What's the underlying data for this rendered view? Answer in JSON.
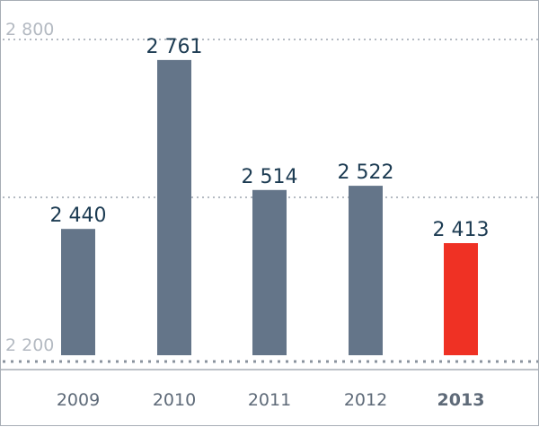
{
  "chart_data": {
    "type": "bar",
    "categories": [
      "2009",
      "2010",
      "2011",
      "2012",
      "2013"
    ],
    "values": [
      2440,
      2761,
      2514,
      2522,
      2413
    ],
    "value_labels": [
      "2 440",
      "2 761",
      "2 514",
      "2 522",
      "2 413"
    ],
    "highlight_category": "2013",
    "ylim": [
      2200,
      2800
    ],
    "y_ticks": [
      {
        "value": 2200,
        "label": "2 200"
      },
      {
        "value": 2800,
        "label": "2 800"
      }
    ],
    "gridlines": [
      2500,
      2800
    ],
    "grid": true,
    "title": "",
    "xlabel": "",
    "ylabel": "",
    "colors": {
      "bar": "#647589",
      "highlight": "#ef3124",
      "grid": "#b4bac2",
      "baseline": "#8a939e",
      "frame": "#a7adb5",
      "data_label": "#1c3b52",
      "tick_label": "#b4bac2",
      "x_label": "#5e6a78"
    }
  }
}
